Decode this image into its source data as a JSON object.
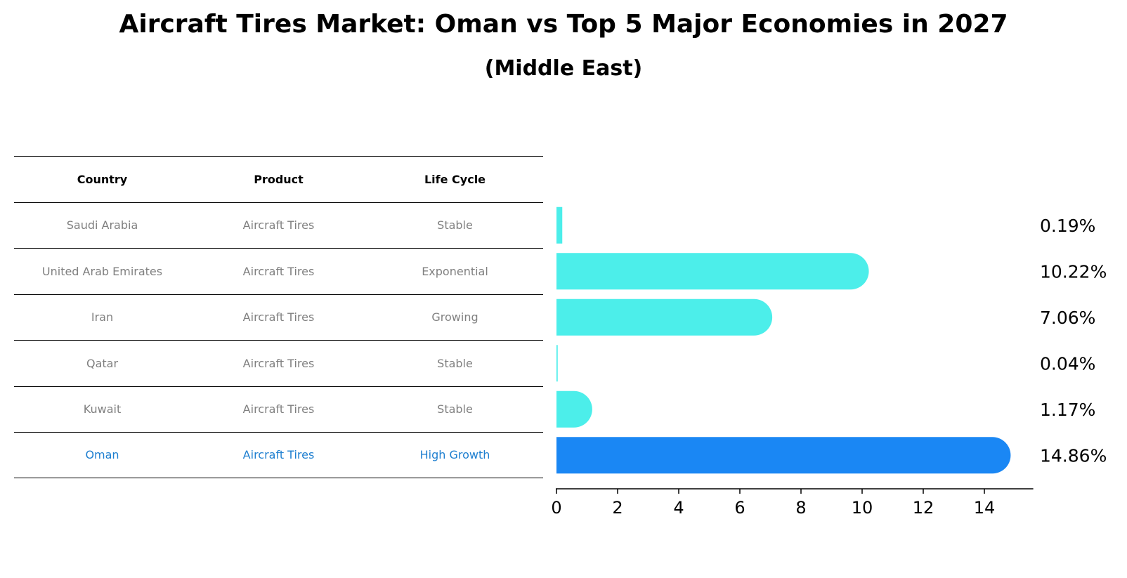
{
  "title": "Aircraft Tires Market: Oman vs Top 5 Major Economies in 2027",
  "subtitle": "(Middle East)",
  "table": {
    "headers": [
      "Country",
      "Product",
      "Life Cycle"
    ],
    "rows": [
      {
        "country": "Saudi Arabia",
        "product": "Aircraft Tires",
        "life_cycle": "Stable"
      },
      {
        "country": "United Arab Emirates",
        "product": "Aircraft Tires",
        "life_cycle": "Exponential"
      },
      {
        "country": "Iran",
        "product": "Aircraft Tires",
        "life_cycle": "Growing"
      },
      {
        "country": "Qatar",
        "product": "Aircraft Tires",
        "life_cycle": "Stable"
      },
      {
        "country": "Kuwait",
        "product": "Aircraft Tires",
        "life_cycle": "Stable"
      },
      {
        "country": "Oman",
        "product": "Aircraft Tires",
        "life_cycle": "High Growth"
      }
    ]
  },
  "colors": {
    "bar": "#4ceeea",
    "highlight_bar": "#1a87f4",
    "highlight_text": "#1e7fd0",
    "muted_text": "#808080"
  },
  "chart_data": {
    "type": "bar",
    "orientation": "horizontal",
    "categories": [
      "Saudi Arabia",
      "United Arab Emirates",
      "Iran",
      "Qatar",
      "Kuwait",
      "Oman"
    ],
    "values": [
      0.19,
      10.22,
      7.06,
      0.04,
      1.17,
      14.86
    ],
    "value_labels": [
      "0.19%",
      "10.22%",
      "7.06%",
      "0.04%",
      "1.17%",
      "14.86%"
    ],
    "highlight": "Oman",
    "xticks": [
      0,
      2,
      4,
      6,
      8,
      10,
      12,
      14
    ],
    "xlim": [
      0,
      15.6
    ],
    "grid": false
  }
}
